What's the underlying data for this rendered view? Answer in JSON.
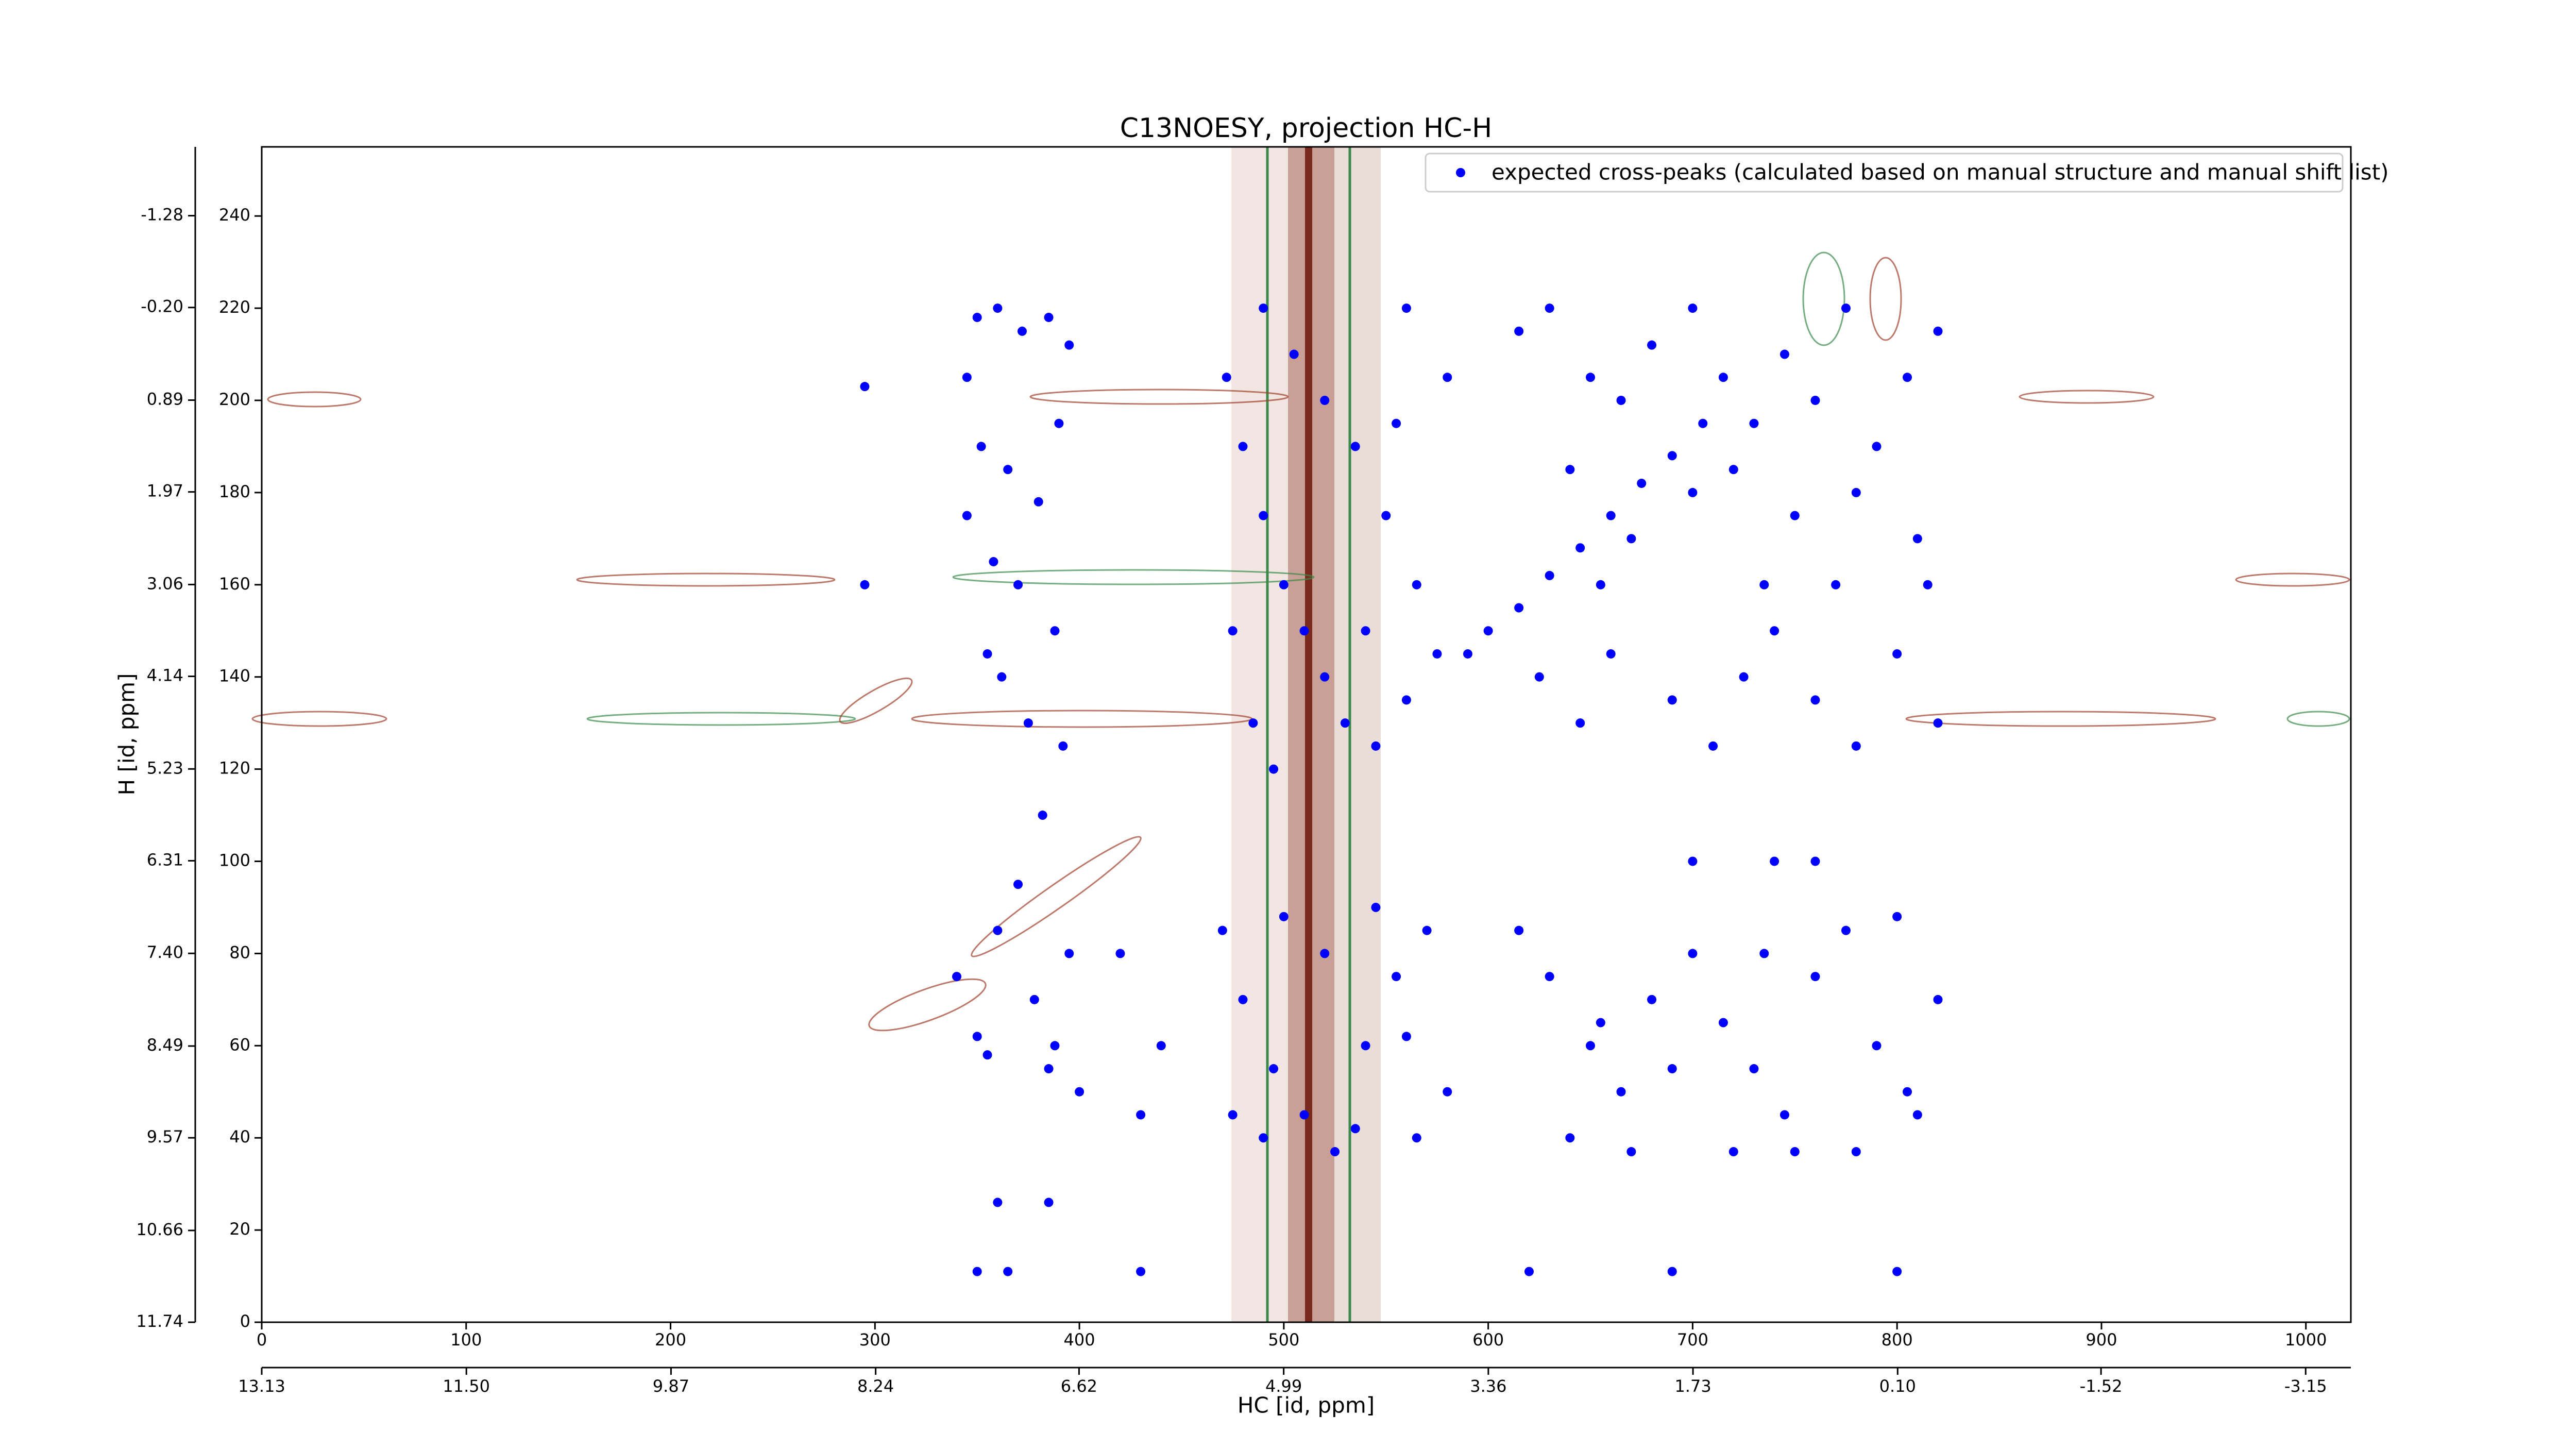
{
  "chart_data": {
    "type": "scatter",
    "title": "C13NOESY, projection HC-H",
    "x_label": "HC [id, ppm]",
    "y_label": "H [id, ppm]",
    "xlim": [
      0,
      1022
    ],
    "xticks": [
      0,
      100,
      200,
      300,
      400,
      500,
      600,
      700,
      800,
      900,
      1000
    ],
    "ylim": [
      0,
      255
    ],
    "yticks": [
      0,
      20,
      40,
      60,
      80,
      100,
      120,
      140,
      160,
      180,
      200,
      220,
      240
    ],
    "x2lim": [
      13.13,
      -3.51
    ],
    "x2ticks": [
      {
        "value": 13.13,
        "label": "13.13"
      },
      {
        "value": 11.5,
        "label": "11.50"
      },
      {
        "value": 9.87,
        "label": "9.87"
      },
      {
        "value": 8.24,
        "label": "8.24"
      },
      {
        "value": 6.62,
        "label": "6.62"
      },
      {
        "value": 4.99,
        "label": "4.99"
      },
      {
        "value": 3.36,
        "label": "3.36"
      },
      {
        "value": 1.73,
        "label": "1.73"
      },
      {
        "value": 0.1,
        "label": "0.10"
      },
      {
        "value": -1.52,
        "label": "-1.52"
      },
      {
        "value": -3.15,
        "label": "-3.15"
      }
    ],
    "y2lim": [
      11.74,
      -2.09
    ],
    "y2ticks": [
      {
        "value": 11.74,
        "label": "11.74"
      },
      {
        "value": 10.66,
        "label": "10.66"
      },
      {
        "value": 9.57,
        "label": "9.57"
      },
      {
        "value": 8.49,
        "label": "8.49"
      },
      {
        "value": 7.4,
        "label": "7.40"
      },
      {
        "value": 6.31,
        "label": "6.31"
      },
      {
        "value": 5.23,
        "label": "5.23"
      },
      {
        "value": 4.14,
        "label": "4.14"
      },
      {
        "value": 3.06,
        "label": "3.06"
      },
      {
        "value": 1.97,
        "label": "1.97"
      },
      {
        "value": 0.89,
        "label": "0.89"
      },
      {
        "value": -0.2,
        "label": "-0.20"
      },
      {
        "value": -1.28,
        "label": "-1.28"
      }
    ],
    "legend": "upper right",
    "series": [
      {
        "name": "expected cross-peaks (calculated based on manual structure and manual shift list)",
        "color": "#0000ff",
        "x": [
          345,
          350,
          360,
          372,
          385,
          395,
          352,
          365,
          380,
          390,
          345,
          358,
          370,
          388,
          362,
          375,
          392,
          355,
          382,
          370,
          360,
          395,
          378,
          388,
          350,
          472,
          480,
          490,
          500,
          510,
          520,
          530,
          545,
          560,
          575,
          565,
          550,
          535,
          520,
          505,
          490,
          560,
          580,
          475,
          485,
          495,
          540,
          555,
          470,
          480,
          495,
          510,
          525,
          540,
          555,
          570,
          580,
          500,
          520,
          535,
          565,
          475,
          545,
          560,
          490,
          590,
          600,
          615,
          630,
          645,
          660,
          675,
          690,
          705,
          615,
          630,
          650,
          665,
          680,
          700,
          715,
          730,
          745,
          760,
          775,
          790,
          805,
          820,
          640,
          670,
          700,
          720,
          750,
          780,
          810,
          625,
          645,
          660,
          690,
          710,
          725,
          740,
          760,
          780,
          800,
          820,
          655,
          735,
          770,
          815,
          700,
          740,
          760,
          615,
          630,
          650,
          665,
          680,
          700,
          715,
          730,
          745,
          760,
          775,
          790,
          805,
          820,
          640,
          670,
          720,
          750,
          780,
          810,
          690,
          655,
          735,
          800,
          340,
          355,
          385,
          400,
          430,
          440,
          420,
          295,
          295,
          360,
          385,
          350,
          365,
          620,
          690,
          800,
          430
        ],
        "values": [
          205,
          218,
          220,
          215,
          218,
          212,
          190,
          185,
          178,
          195,
          175,
          165,
          160,
          150,
          140,
          130,
          125,
          145,
          110,
          95,
          85,
          80,
          70,
          60,
          62,
          205,
          190,
          175,
          160,
          150,
          140,
          130,
          125,
          135,
          145,
          160,
          175,
          190,
          200,
          210,
          220,
          220,
          205,
          150,
          130,
          120,
          150,
          195,
          85,
          70,
          55,
          45,
          37,
          60,
          75,
          85,
          50,
          88,
          80,
          42,
          40,
          45,
          90,
          62,
          40,
          145,
          150,
          155,
          162,
          168,
          175,
          182,
          188,
          195,
          215,
          220,
          205,
          200,
          212,
          220,
          205,
          195,
          210,
          200,
          220,
          190,
          205,
          215,
          185,
          170,
          180,
          185,
          175,
          180,
          170,
          140,
          130,
          145,
          135,
          125,
          140,
          150,
          135,
          125,
          145,
          130,
          160,
          160,
          160,
          160,
          100,
          100,
          100,
          85,
          75,
          60,
          50,
          70,
          80,
          65,
          55,
          45,
          75,
          85,
          60,
          50,
          70,
          40,
          37,
          37,
          37,
          37,
          45,
          55,
          65,
          80,
          88,
          75,
          58,
          55,
          50,
          45,
          60,
          80,
          203,
          160,
          26,
          26,
          11,
          11,
          11,
          11,
          11,
          11
        ]
      }
    ]
  }
}
